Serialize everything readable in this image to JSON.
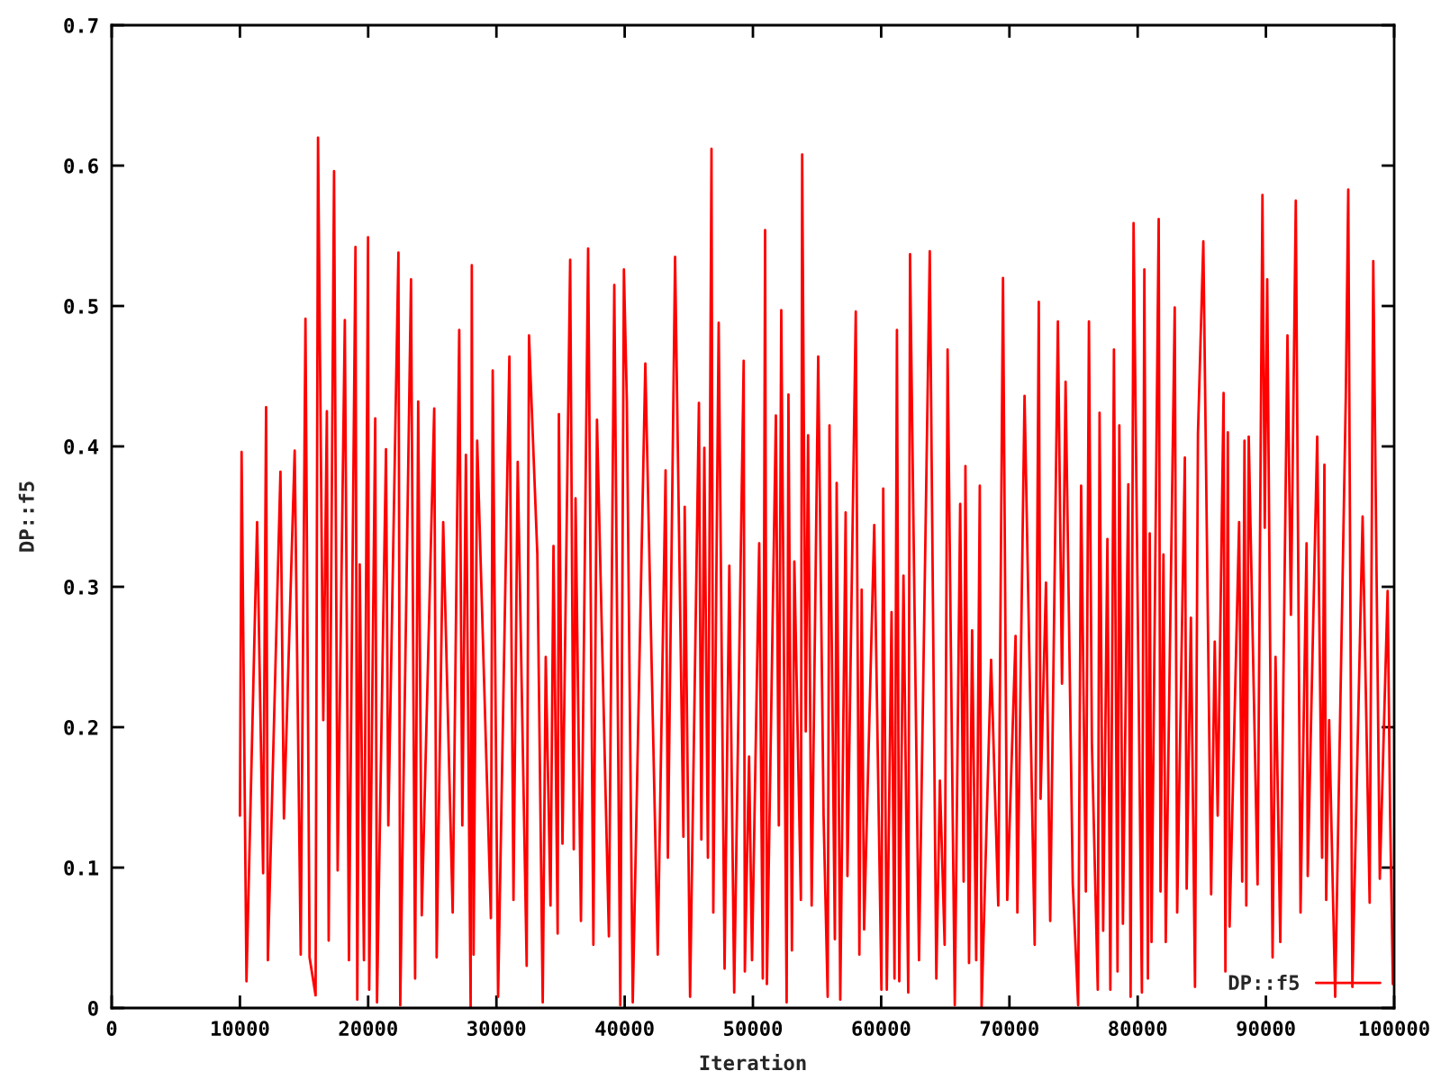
{
  "chart_data": {
    "type": "line",
    "xlabel": "Iteration",
    "ylabel": "DP::f5",
    "series": [
      {
        "name": "DP::f5",
        "color": "#ff0000",
        "x": [
          10000,
          10130,
          10510,
          11340,
          11810,
          12040,
          12180,
          13160,
          13430,
          14270,
          14740,
          15110,
          15430,
          15900,
          16090,
          16500,
          16780,
          16920,
          17340,
          17620,
          18180,
          18500,
          19010,
          19150,
          19340,
          19670,
          19990,
          20080,
          20550,
          20690,
          21390,
          21570,
          22360,
          22500,
          23340,
          23660,
          23900,
          24180,
          25150,
          25340,
          25850,
          26590,
          27100,
          27340,
          27620,
          27990,
          28080,
          28220,
          28500,
          29570,
          29710,
          30130,
          31010,
          31330,
          31660,
          32360,
          32540,
          33190,
          33610,
          33845,
          34217,
          34450,
          34775,
          34870,
          35150,
          35750,
          36030,
          36170,
          36590,
          37150,
          37560,
          37840,
          38770,
          39190,
          39660,
          39940,
          40170,
          40630,
          41610,
          42580,
          43190,
          43370,
          43930,
          44580,
          44680,
          45100,
          45790,
          45980,
          46210,
          46490,
          46770,
          46910,
          47330,
          47790,
          48160,
          48540,
          49280,
          49370,
          49700,
          49930,
          50490,
          50770,
          50950,
          51090,
          51790,
          52020,
          52210,
          52630,
          52770,
          53040,
          53230,
          53740,
          53840,
          54120,
          54300,
          54580,
          55090,
          55510,
          55830,
          55970,
          56390,
          56530,
          56810,
          57230,
          57370,
          58020,
          58300,
          58480,
          58670,
          59460,
          60020,
          60160,
          60440,
          60810,
          61040,
          61230,
          61410,
          61740,
          62110,
          62250,
          62950,
          63790,
          64300,
          64580,
          64950,
          65180,
          65740,
          66160,
          66430,
          66570,
          66850,
          67090,
          67410,
          67690,
          67830,
          68570,
          69130,
          69500,
          69830,
          70480,
          70620,
          71180,
          71970,
          72290,
          72430,
          72850,
          73180,
          73780,
          74100,
          74380,
          74940,
          75360,
          75590,
          75960,
          76200,
          76430,
          76890,
          77030,
          77310,
          77640,
          77870,
          78150,
          78430,
          78570,
          78850,
          79270,
          79450,
          79680,
          80330,
          80520,
          80800,
          80940,
          81080,
          81640,
          81780,
          82010,
          82190,
          82890,
          83080,
          83680,
          83820,
          84150,
          84470,
          84700,
          85120,
          85730,
          86010,
          86240,
          86700,
          86840,
          87030,
          87170,
          87910,
          88150,
          88330,
          88470,
          88660,
          89350,
          89730,
          89910,
          90100,
          90520,
          90750,
          91120,
          91680,
          91950,
          92330,
          92700,
          93170,
          93260,
          94000,
          94380,
          94560,
          94700,
          94930,
          95400,
          96230,
          96420,
          96740,
          97540,
          98090,
          98370,
          98880,
          99490,
          99680,
          99900
        ],
        "values": [
          0.137,
          0.396,
          0.019,
          0.346,
          0.096,
          0.428,
          0.034,
          0.382,
          0.135,
          0.397,
          0.038,
          0.491,
          0.036,
          0.009,
          0.62,
          0.205,
          0.425,
          0.048,
          0.596,
          0.098,
          0.49,
          0.034,
          0.542,
          0.006,
          0.316,
          0.034,
          0.549,
          0.013,
          0.42,
          0.004,
          0.398,
          0.13,
          0.538,
          0.002,
          0.519,
          0.021,
          0.432,
          0.066,
          0.427,
          0.036,
          0.346,
          0.068,
          0.483,
          0.13,
          0.394,
          0.0,
          0.529,
          0.038,
          0.404,
          0.064,
          0.454,
          0.008,
          0.464,
          0.077,
          0.389,
          0.03,
          0.479,
          0.323,
          0.004,
          0.25,
          0.073,
          0.329,
          0.053,
          0.423,
          0.117,
          0.533,
          0.113,
          0.363,
          0.062,
          0.541,
          0.045,
          0.419,
          0.051,
          0.515,
          0.002,
          0.526,
          0.432,
          0.004,
          0.459,
          0.038,
          0.383,
          0.107,
          0.535,
          0.122,
          0.357,
          0.008,
          0.431,
          0.12,
          0.399,
          0.107,
          0.612,
          0.068,
          0.488,
          0.028,
          0.315,
          0.011,
          0.461,
          0.026,
          0.179,
          0.034,
          0.331,
          0.021,
          0.554,
          0.017,
          0.422,
          0.13,
          0.497,
          0.004,
          0.437,
          0.041,
          0.318,
          0.077,
          0.608,
          0.197,
          0.408,
          0.073,
          0.464,
          0.137,
          0.008,
          0.415,
          0.049,
          0.374,
          0.006,
          0.353,
          0.094,
          0.496,
          0.038,
          0.298,
          0.056,
          0.344,
          0.013,
          0.37,
          0.013,
          0.282,
          0.021,
          0.483,
          0.019,
          0.308,
          0.011,
          0.537,
          0.034,
          0.539,
          0.021,
          0.162,
          0.045,
          0.469,
          0.002,
          0.359,
          0.09,
          0.386,
          0.032,
          0.269,
          0.034,
          0.372,
          0.0,
          0.248,
          0.073,
          0.52,
          0.077,
          0.265,
          0.068,
          0.436,
          0.045,
          0.503,
          0.149,
          0.303,
          0.062,
          0.489,
          0.231,
          0.446,
          0.088,
          0.002,
          0.372,
          0.083,
          0.489,
          0.189,
          0.013,
          0.424,
          0.055,
          0.334,
          0.013,
          0.469,
          0.026,
          0.415,
          0.06,
          0.373,
          0.008,
          0.559,
          0.011,
          0.526,
          0.021,
          0.338,
          0.047,
          0.562,
          0.083,
          0.323,
          0.047,
          0.499,
          0.068,
          0.392,
          0.085,
          0.278,
          0.015,
          0.409,
          0.546,
          0.081,
          0.261,
          0.137,
          0.438,
          0.026,
          0.41,
          0.058,
          0.346,
          0.09,
          0.404,
          0.073,
          0.407,
          0.088,
          0.579,
          0.342,
          0.519,
          0.036,
          0.25,
          0.047,
          0.479,
          0.28,
          0.575,
          0.068,
          0.331,
          0.094,
          0.407,
          0.107,
          0.387,
          0.077,
          0.205,
          0.008,
          0.436,
          0.583,
          0.015,
          0.35,
          0.075,
          0.532,
          0.092,
          0.297,
          0.141,
          0.017
        ]
      }
    ],
    "xlim": [
      0,
      100000
    ],
    "ylim": [
      0,
      0.7
    ],
    "xticks": [
      0,
      10000,
      20000,
      30000,
      40000,
      50000,
      60000,
      70000,
      80000,
      90000,
      100000
    ],
    "yticks": [
      0,
      0.1,
      0.2,
      0.3,
      0.4,
      0.5,
      0.6,
      0.7
    ],
    "grid": false,
    "legend": "bottom right",
    "line_style": "solid",
    "marker": "none"
  }
}
